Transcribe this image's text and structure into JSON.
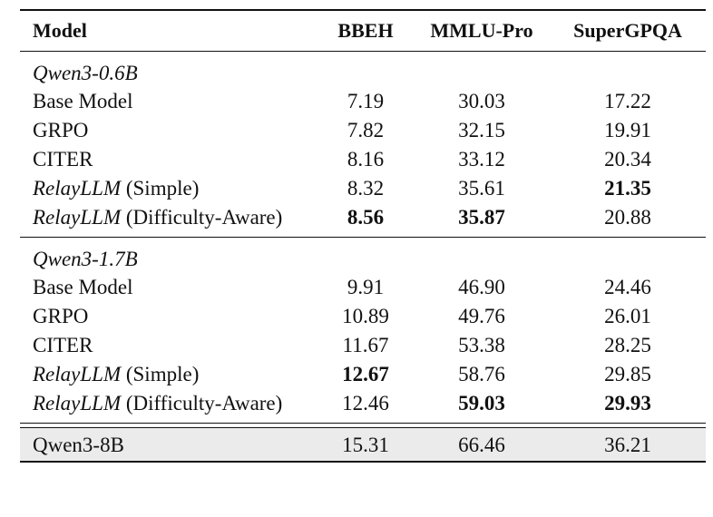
{
  "headers": [
    "Model",
    "BBEH",
    "MMLU-Pro",
    "SuperGPQA"
  ],
  "groups": [
    {
      "title": "Qwen3-0.6B",
      "rows": [
        {
          "name": "Base Model",
          "values": [
            "7.19",
            "30.03",
            "17.22"
          ]
        },
        {
          "name": "GRPO",
          "values": [
            "7.82",
            "32.15",
            "19.91"
          ]
        },
        {
          "name": "CITER",
          "values": [
            "8.16",
            "33.12",
            "20.34"
          ]
        },
        {
          "name_italic": "RelayLLM",
          "name_suffix": " (Simple)",
          "values": [
            "8.32",
            "35.61",
            "21.35"
          ]
        },
        {
          "name_italic": "RelayLLM",
          "name_suffix": " (Difficulty-Aware)",
          "values": [
            "8.56",
            "35.87",
            "20.88"
          ]
        }
      ]
    },
    {
      "title": "Qwen3-1.7B",
      "rows": [
        {
          "name": "Base Model",
          "values": [
            "9.91",
            "46.90",
            "24.46"
          ]
        },
        {
          "name": "GRPO",
          "values": [
            "10.89",
            "49.76",
            "26.01"
          ]
        },
        {
          "name": "CITER",
          "values": [
            "11.67",
            "53.38",
            "28.25"
          ]
        },
        {
          "name_italic": "RelayLLM",
          "name_suffix": " (Simple)",
          "values": [
            "12.67",
            "58.76",
            "29.85"
          ]
        },
        {
          "name_italic": "RelayLLM",
          "name_suffix": " (Difficulty-Aware)",
          "values": [
            "12.46",
            "59.03",
            "29.93"
          ]
        }
      ]
    }
  ],
  "reference": {
    "name": "Qwen3-8B",
    "values": [
      "15.31",
      "66.46",
      "36.21"
    ]
  }
}
